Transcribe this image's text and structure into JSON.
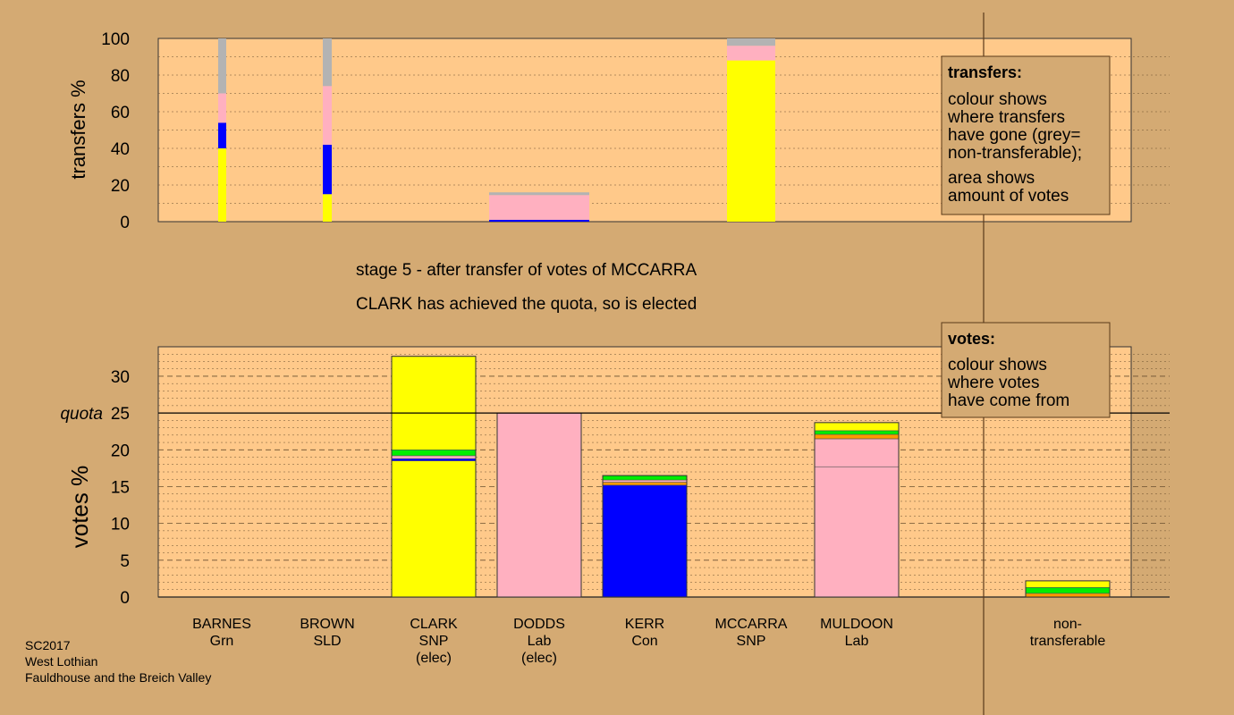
{
  "colors": {
    "background": "#d4aa73",
    "panel": "#ffc98a",
    "SNP": "#ffff00",
    "Con": "#0000ff",
    "Lab": "#ffb0c0",
    "Grn": "#00ee00",
    "SLD": "#ff9900",
    "nontransferable": "#b3b3b3",
    "other": "#8b6a4a"
  },
  "stage_text": {
    "line1": "stage 5 - after transfer of votes of MCCARRA",
    "line2": "CLARK has achieved the quota, so is elected"
  },
  "legend_transfers": {
    "title": "transfers:",
    "lines": [
      "colour shows",
      "where transfers",
      "have gone (grey=",
      "non-transferable);",
      "area shows",
      "amount of votes"
    ]
  },
  "legend_votes": {
    "title": "votes:",
    "lines": [
      "colour shows",
      "where votes",
      "have come from"
    ]
  },
  "footer": [
    "SC2017",
    "West Lothian",
    "Fauldhouse and the Breich Valley"
  ],
  "chart_data": [
    {
      "type": "bar",
      "name": "transfers",
      "ylabel": "transfers %",
      "ylim": [
        0,
        100
      ],
      "yticks": [
        0,
        20,
        40,
        60,
        80,
        100
      ],
      "bars": [
        {
          "candidate": "BARNES",
          "segments": [
            {
              "party": "SNP",
              "value": 40
            },
            {
              "party": "Con",
              "value": 14
            },
            {
              "party": "Lab",
              "value": 16
            },
            {
              "party": "nontransferable",
              "value": 30
            }
          ]
        },
        {
          "candidate": "BROWN",
          "segments": [
            {
              "party": "SNP",
              "value": 15
            },
            {
              "party": "Con",
              "value": 27
            },
            {
              "party": "Lab",
              "value": 32
            },
            {
              "party": "nontransferable",
              "value": 26
            }
          ]
        },
        {
          "candidate": "DODDS",
          "segments": [
            {
              "party": "Con",
              "value": 1
            },
            {
              "party": "Lab",
              "value": 13.5
            },
            {
              "party": "nontransferable",
              "value": 1.5
            }
          ]
        },
        {
          "candidate": "MCCARRA",
          "segments": [
            {
              "party": "SNP",
              "value": 88
            },
            {
              "party": "Lab",
              "value": 8
            },
            {
              "party": "nontransferable",
              "value": 4
            }
          ]
        }
      ]
    },
    {
      "type": "bar",
      "name": "votes",
      "ylabel": "votes %",
      "ylim": [
        0,
        34
      ],
      "yticks": [
        0,
        5,
        10,
        15,
        20,
        25,
        30
      ],
      "quota": 25,
      "quota_label": "quota",
      "categories": [
        {
          "name": "BARNES",
          "party": "Grn",
          "note": ""
        },
        {
          "name": "BROWN",
          "party": "SLD",
          "note": ""
        },
        {
          "name": "CLARK",
          "party": "SNP",
          "note": "(elec)"
        },
        {
          "name": "DODDS",
          "party": "Lab",
          "note": "(elec)"
        },
        {
          "name": "KERR",
          "party": "Con",
          "note": ""
        },
        {
          "name": "MCCARRA",
          "party": "SNP",
          "note": ""
        },
        {
          "name": "MULDOON",
          "party": "Lab",
          "note": ""
        }
      ],
      "nontransferable_label": [
        "non-",
        "transferable"
      ],
      "bars": [
        {
          "candidate": "CLARK",
          "segments": [
            {
              "party": "SNP",
              "value": 18.5
            },
            {
              "party": "Con",
              "value": 0.3
            },
            {
              "party": "Lab",
              "value": 0.4
            },
            {
              "party": "Grn",
              "value": 0.8
            },
            {
              "party": "SNP",
              "value": 12.7
            }
          ]
        },
        {
          "candidate": "DODDS",
          "segments": [
            {
              "party": "Lab",
              "value": 25
            }
          ]
        },
        {
          "candidate": "KERR",
          "segments": [
            {
              "party": "Con",
              "value": 15.2
            },
            {
              "party": "SLD",
              "value": 0.4
            },
            {
              "party": "Lab",
              "value": 0.3
            },
            {
              "party": "Grn",
              "value": 0.6
            }
          ]
        },
        {
          "candidate": "MULDOON",
          "segments": [
            {
              "party": "Lab",
              "value": 17.7
            },
            {
              "party": "Lab",
              "value": 3.8
            },
            {
              "party": "SLD",
              "value": 0.6
            },
            {
              "party": "Grn",
              "value": 0.5
            },
            {
              "party": "SNP",
              "value": 1.1
            }
          ]
        },
        {
          "candidate": "non-transferable",
          "segments": [
            {
              "party": "SLD",
              "value": 0.5
            },
            {
              "party": "Grn",
              "value": 0.8
            },
            {
              "party": "SNP",
              "value": 0.9
            }
          ]
        }
      ]
    }
  ]
}
